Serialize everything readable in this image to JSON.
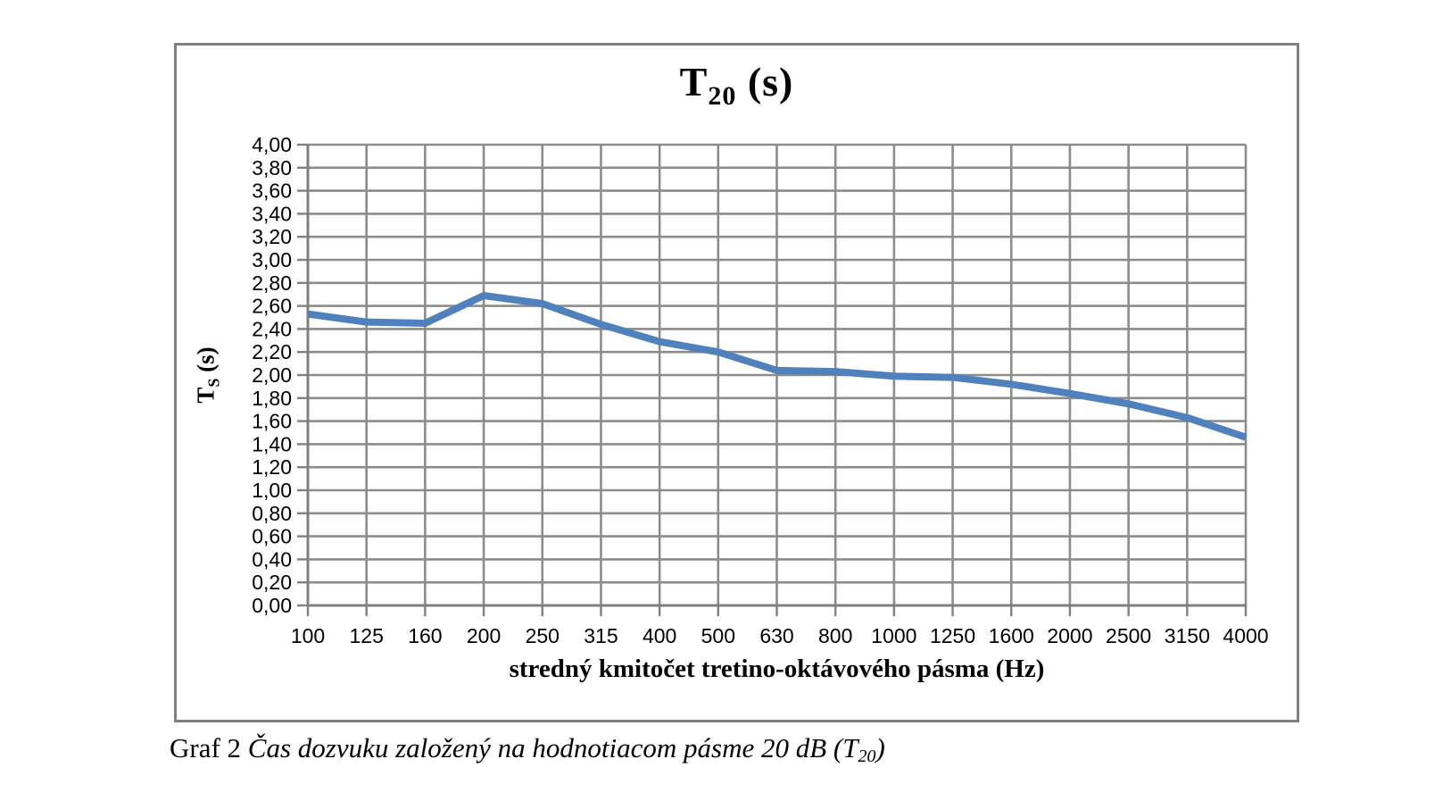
{
  "page": {
    "background": "#ffffff"
  },
  "chart": {
    "title_parts": {
      "main": "T",
      "sub": "20",
      "suffix": " (s)"
    },
    "y_axis_title_parts": {
      "main": "T",
      "sub": "S",
      "suffix": " (s)"
    },
    "x_axis_title": "stredný kmitočet tretino-oktávového pásma (Hz)",
    "colors": {
      "series_line": "#4f81bd",
      "gridline": "#8c8c8c",
      "axis": "#808080",
      "frame_border": "#808080",
      "text": "#000000",
      "background": "#ffffff"
    }
  },
  "chart_data": {
    "type": "line",
    "title": "T20 (s)",
    "xlabel": "stredný kmitočet tretino-oktávového pásma (Hz)",
    "ylabel": "TS (s)",
    "categories": [
      "100",
      "125",
      "160",
      "200",
      "250",
      "315",
      "400",
      "500",
      "630",
      "800",
      "1000",
      "1250",
      "1600",
      "2000",
      "2500",
      "3150",
      "4000"
    ],
    "series": [
      {
        "name": "T20",
        "color": "#4f81bd",
        "values": [
          2.53,
          2.46,
          2.45,
          2.69,
          2.62,
          2.44,
          2.29,
          2.2,
          2.04,
          2.03,
          1.99,
          1.98,
          1.92,
          1.84,
          1.75,
          1.63,
          1.46
        ]
      }
    ],
    "ylim": [
      0,
      4
    ],
    "ytick_step": 0.2,
    "y_tick_labels": [
      "4,00",
      "3,80",
      "3,60",
      "3,40",
      "3,20",
      "3,00",
      "2,80",
      "2,60",
      "2,40",
      "2,20",
      "2,00",
      "1,80",
      "1,60",
      "1,40",
      "1,20",
      "1,00",
      "0,80",
      "0,60",
      "0,40",
      "0,20",
      "0,00"
    ],
    "grid": true,
    "legend_position": "none"
  },
  "caption": {
    "label": "Graf 2 ",
    "italic_text": "Čas dozvuku založený na hodnotiacom pásme 20 dB ",
    "symbol": {
      "open": "(T",
      "sub": "20",
      "close": ")"
    }
  }
}
